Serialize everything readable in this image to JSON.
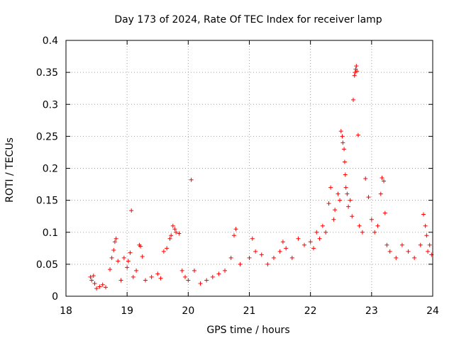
{
  "chart_data": {
    "type": "scatter",
    "title": "Day 173 of 2024, Rate Of TEC Index for receiver lamp",
    "xlabel": "GPS time / hours",
    "ylabel": "ROTI / TECUs",
    "xlim": [
      18,
      24
    ],
    "ylim": [
      0,
      0.4
    ],
    "xticks": [
      18,
      19,
      20,
      21,
      22,
      23,
      24
    ],
    "yticks": [
      0,
      0.05,
      0.1,
      0.15,
      0.2,
      0.25,
      0.3,
      0.35,
      0.4
    ],
    "xtick_labels": [
      "18",
      "19",
      "20",
      "21",
      "22",
      "23",
      "24"
    ],
    "ytick_labels": [
      "0",
      "0.05",
      "0.1",
      "0.15",
      "0.2",
      "0.25",
      "0.3",
      "0.35",
      "0.4"
    ],
    "grid": true,
    "marker": "+",
    "color": "#ff0000",
    "points": [
      [
        18.4,
        0.03
      ],
      [
        18.42,
        0.025
      ],
      [
        18.45,
        0.032
      ],
      [
        18.47,
        0.02
      ],
      [
        18.5,
        0.012
      ],
      [
        18.55,
        0.015
      ],
      [
        18.6,
        0.018
      ],
      [
        18.65,
        0.014
      ],
      [
        18.72,
        0.042
      ],
      [
        18.75,
        0.06
      ],
      [
        18.78,
        0.072
      ],
      [
        18.8,
        0.085
      ],
      [
        18.82,
        0.09
      ],
      [
        18.85,
        0.055
      ],
      [
        18.9,
        0.025
      ],
      [
        18.95,
        0.06
      ],
      [
        19.0,
        0.045
      ],
      [
        19.02,
        0.055
      ],
      [
        19.05,
        0.068
      ],
      [
        19.07,
        0.134
      ],
      [
        19.1,
        0.03
      ],
      [
        19.15,
        0.04
      ],
      [
        19.2,
        0.08
      ],
      [
        19.22,
        0.078
      ],
      [
        19.25,
        0.062
      ],
      [
        19.3,
        0.025
      ],
      [
        19.4,
        0.03
      ],
      [
        19.5,
        0.035
      ],
      [
        19.55,
        0.028
      ],
      [
        19.6,
        0.07
      ],
      [
        19.65,
        0.075
      ],
      [
        19.7,
        0.09
      ],
      [
        19.72,
        0.095
      ],
      [
        19.75,
        0.11
      ],
      [
        19.78,
        0.105
      ],
      [
        19.8,
        0.1
      ],
      [
        19.85,
        0.098
      ],
      [
        19.9,
        0.04
      ],
      [
        19.95,
        0.03
      ],
      [
        20.0,
        0.025
      ],
      [
        20.05,
        0.182
      ],
      [
        20.1,
        0.04
      ],
      [
        20.2,
        0.02
      ],
      [
        20.3,
        0.025
      ],
      [
        20.4,
        0.03
      ],
      [
        20.5,
        0.035
      ],
      [
        20.6,
        0.04
      ],
      [
        20.7,
        0.06
      ],
      [
        20.75,
        0.095
      ],
      [
        20.78,
        0.105
      ],
      [
        20.85,
        0.05
      ],
      [
        21.0,
        0.06
      ],
      [
        21.05,
        0.09
      ],
      [
        21.1,
        0.07
      ],
      [
        21.2,
        0.065
      ],
      [
        21.3,
        0.05
      ],
      [
        21.4,
        0.06
      ],
      [
        21.5,
        0.07
      ],
      [
        21.55,
        0.085
      ],
      [
        21.6,
        0.075
      ],
      [
        21.7,
        0.06
      ],
      [
        21.8,
        0.09
      ],
      [
        21.9,
        0.08
      ],
      [
        22.0,
        0.085
      ],
      [
        22.05,
        0.075
      ],
      [
        22.1,
        0.1
      ],
      [
        22.15,
        0.09
      ],
      [
        22.2,
        0.11
      ],
      [
        22.25,
        0.1
      ],
      [
        22.3,
        0.145
      ],
      [
        22.33,
        0.17
      ],
      [
        22.38,
        0.12
      ],
      [
        22.4,
        0.135
      ],
      [
        22.45,
        0.16
      ],
      [
        22.48,
        0.15
      ],
      [
        22.5,
        0.258
      ],
      [
        22.52,
        0.25
      ],
      [
        22.53,
        0.24
      ],
      [
        22.55,
        0.23
      ],
      [
        22.56,
        0.21
      ],
      [
        22.57,
        0.19
      ],
      [
        22.58,
        0.17
      ],
      [
        22.6,
        0.16
      ],
      [
        22.62,
        0.14
      ],
      [
        22.65,
        0.15
      ],
      [
        22.68,
        0.125
      ],
      [
        22.7,
        0.307
      ],
      [
        22.72,
        0.345
      ],
      [
        22.73,
        0.35
      ],
      [
        22.74,
        0.355
      ],
      [
        22.75,
        0.36
      ],
      [
        22.76,
        0.352
      ],
      [
        22.78,
        0.252
      ],
      [
        22.8,
        0.11
      ],
      [
        22.85,
        0.1
      ],
      [
        22.9,
        0.184
      ],
      [
        22.95,
        0.155
      ],
      [
        23.0,
        0.12
      ],
      [
        23.05,
        0.1
      ],
      [
        23.1,
        0.11
      ],
      [
        23.15,
        0.16
      ],
      [
        23.17,
        0.185
      ],
      [
        23.2,
        0.18
      ],
      [
        23.22,
        0.13
      ],
      [
        23.25,
        0.08
      ],
      [
        23.3,
        0.07
      ],
      [
        23.4,
        0.06
      ],
      [
        23.5,
        0.08
      ],
      [
        23.6,
        0.07
      ],
      [
        23.7,
        0.06
      ],
      [
        23.8,
        0.08
      ],
      [
        23.85,
        0.128
      ],
      [
        23.88,
        0.11
      ],
      [
        23.9,
        0.095
      ],
      [
        23.92,
        0.07
      ],
      [
        23.95,
        0.08
      ],
      [
        23.98,
        0.065
      ]
    ]
  }
}
